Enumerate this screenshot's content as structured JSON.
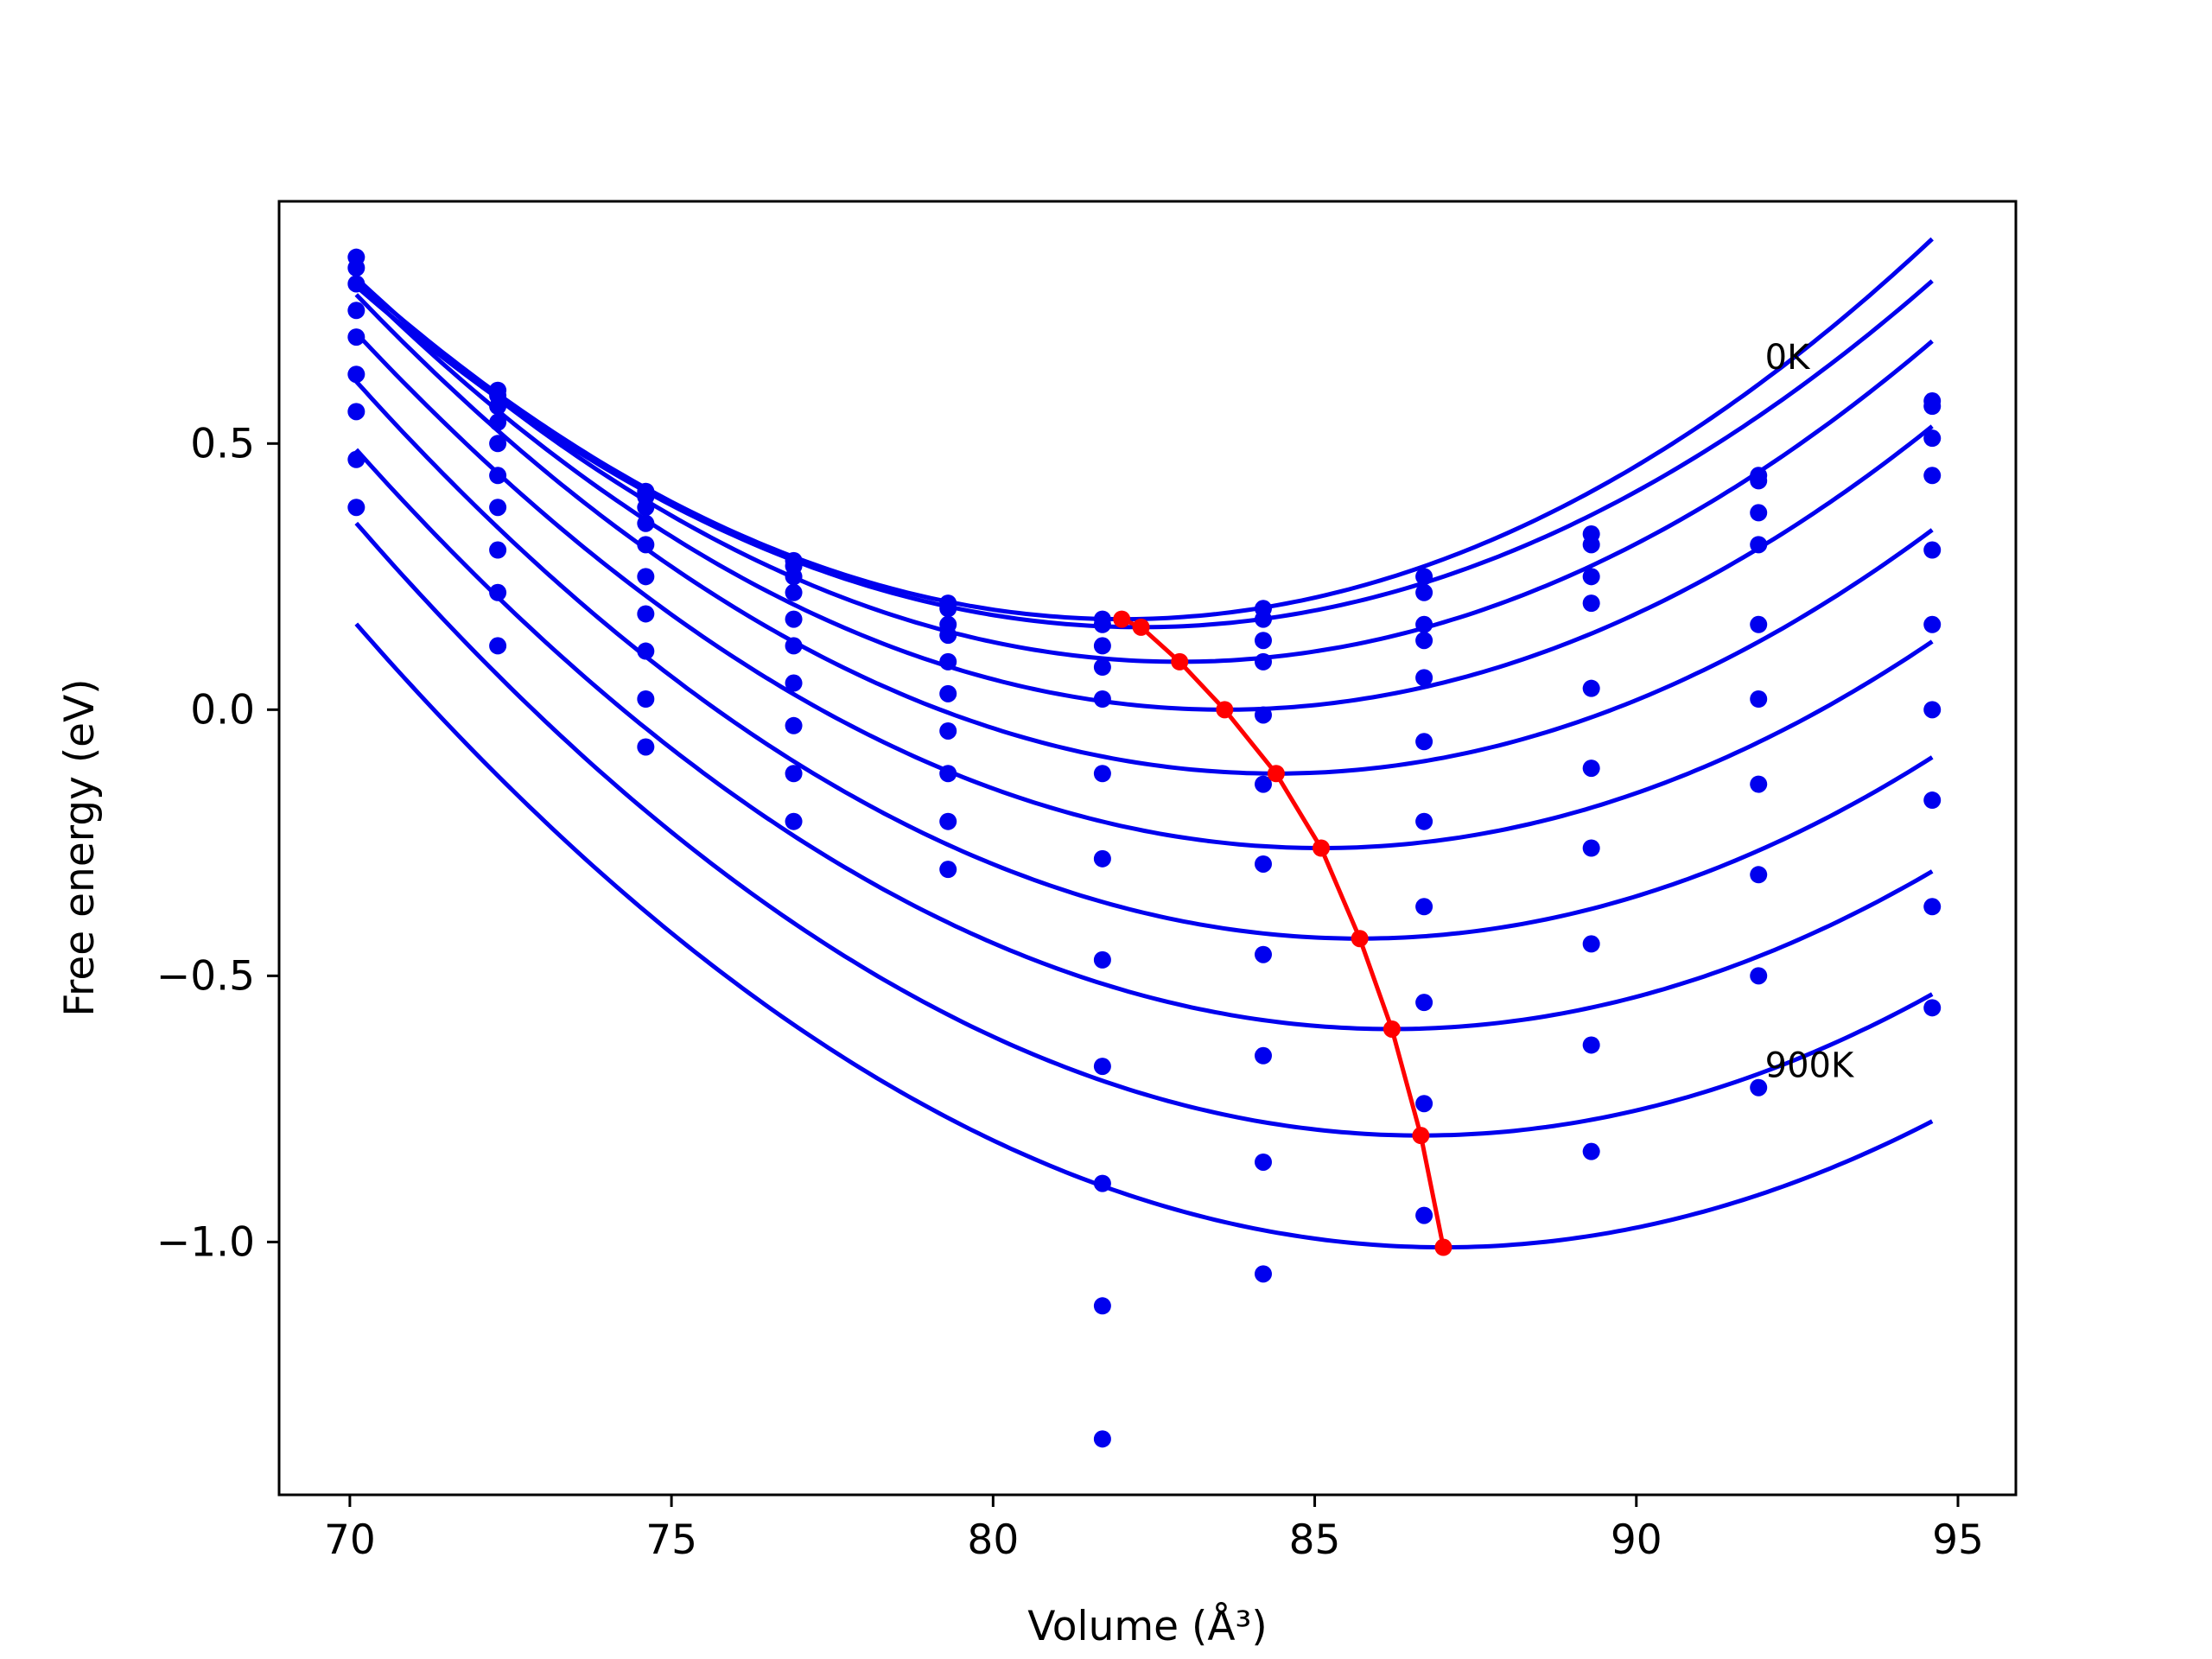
{
  "chart_data": {
    "type": "scatter",
    "xlabel": "Volume (Å³)",
    "ylabel": "Free energy (eV)",
    "xlim": [
      68.9,
      95.9
    ],
    "ylim": [
      -1.475,
      0.955
    ],
    "xticks": [
      70,
      75,
      80,
      85,
      90,
      95
    ],
    "yticks": [
      0.5,
      0.0,
      -0.5,
      -1.0
    ],
    "xtick_labels": [
      "70",
      "75",
      "80",
      "85",
      "90",
      "95"
    ],
    "ytick_labels": [
      "0.5",
      "0.0",
      "−0.5",
      "−1.0"
    ],
    "grid": false,
    "annotations": [
      {
        "text": "0K",
        "x": 92.0,
        "y": 0.64
      },
      {
        "text": "900K",
        "x": 92.0,
        "y": -0.69
      }
    ],
    "colors": {
      "fit": "#0000ee",
      "points": "#0000ee",
      "minimum": "#ff0000",
      "frame": "#000000"
    },
    "x_points": [
      70.1,
      72.3,
      74.6,
      76.9,
      79.3,
      81.7,
      84.2,
      86.7,
      89.3,
      91.9,
      94.6
    ],
    "series": [
      {
        "values": [
          0.85,
          0.6,
          0.41,
          0.28,
          0.2,
          0.17,
          0.19,
          0.25,
          0.33,
          0.44,
          0.58
        ],
        "fit": {
          "min_x": 82.0,
          "min_y": 0.17,
          "curvature": 0.0045
        }
      },
      {
        "values": [
          0.83,
          0.59,
          0.4,
          0.27,
          0.19,
          0.16,
          0.17,
          0.22,
          0.31,
          0.43,
          0.57
        ],
        "fit": {
          "min_x": 82.3,
          "min_y": 0.155,
          "curvature": 0.0043
        }
      },
      {
        "values": [
          0.8,
          0.57,
          0.38,
          0.25,
          0.16,
          0.12,
          0.13,
          0.16,
          0.25,
          0.37,
          0.51
        ],
        "fit": {
          "min_x": 82.9,
          "min_y": 0.09,
          "curvature": 0.0044
        }
      },
      {
        "values": [
          0.75,
          0.54,
          0.35,
          0.22,
          0.14,
          0.08,
          0.09,
          0.13,
          0.2,
          0.31,
          0.44
        ],
        "fit": {
          "min_x": 83.6,
          "min_y": 0.0,
          "curvature": 0.0044
        }
      },
      {
        "values": [
          0.7,
          0.5,
          0.31,
          0.17,
          0.09,
          0.02,
          -0.01,
          0.06,
          0.04,
          0.16,
          0.3
        ],
        "fit": {
          "min_x": 84.4,
          "min_y": -0.12,
          "curvature": 0.0044
        }
      },
      {
        "values": [
          0.63,
          0.44,
          0.25,
          0.12,
          0.03,
          -0.12,
          -0.14,
          -0.06,
          -0.11,
          0.02,
          0.16
        ],
        "fit": {
          "min_x": 85.1,
          "min_y": -0.26,
          "curvature": 0.0043
        }
      },
      {
        "values": [
          0.56,
          0.38,
          0.18,
          0.05,
          -0.04,
          -0.28,
          -0.29,
          -0.21,
          -0.26,
          -0.14,
          0.0
        ],
        "fit": {
          "min_x": 85.7,
          "min_y": -0.43,
          "curvature": 0.0043
        }
      },
      {
        "values": [
          0.47,
          0.3,
          0.11,
          -0.03,
          -0.12,
          -0.47,
          -0.46,
          -0.37,
          -0.44,
          -0.31,
          -0.17
        ],
        "fit": {
          "min_x": 86.2,
          "min_y": -0.6,
          "curvature": 0.0042
        }
      },
      {
        "values": [
          0.38,
          0.22,
          0.02,
          -0.12,
          -0.21,
          -0.67,
          -0.65,
          -0.55,
          -0.63,
          -0.5,
          -0.37
        ],
        "fit": {
          "min_x": 86.65,
          "min_y": -0.8,
          "curvature": 0.0042
        }
      },
      {
        "values": [
          null,
          0.12,
          -0.07,
          -0.21,
          -0.3,
          -0.89,
          -0.85,
          -0.74,
          -0.83,
          -0.71,
          -0.56
        ],
        "fit": {
          "min_x": 87.0,
          "min_y": -1.01,
          "curvature": 0.0041
        }
      }
    ],
    "extra_points": [
      {
        "x": 81.7,
        "y": -1.12
      },
      {
        "x": 81.7,
        "y": -1.37
      },
      {
        "x": 84.2,
        "y": -1.06
      },
      {
        "x": 86.7,
        "y": -0.95
      }
    ],
    "minimum_line": {
      "x": [
        82.0,
        82.3,
        82.9,
        83.6,
        84.4,
        85.1,
        85.7,
        86.2,
        86.65,
        87.0
      ],
      "y": [
        0.17,
        0.155,
        0.09,
        0.0,
        -0.12,
        -0.26,
        -0.43,
        -0.6,
        -0.8,
        -1.01
      ]
    }
  }
}
